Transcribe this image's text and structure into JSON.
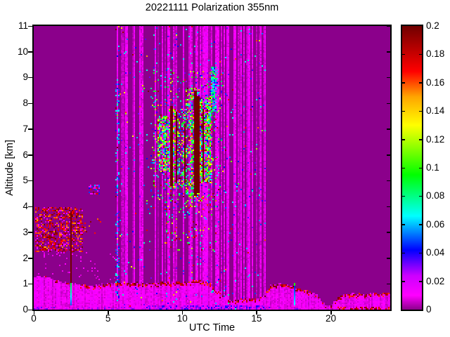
{
  "chart_data": {
    "type": "heatmap",
    "title": "20221111 Polarization 355nm",
    "xlabel": "UTC Time",
    "ylabel": "Altitude [km]",
    "x_range": [
      0,
      24
    ],
    "x_ticks": [
      0,
      5,
      10,
      15,
      20
    ],
    "y_range": [
      0,
      11
    ],
    "y_ticks": [
      0,
      1,
      2,
      3,
      4,
      5,
      6,
      7,
      8,
      9,
      10,
      11
    ],
    "colorbar": {
      "range": [
        0,
        0.2
      ],
      "ticks": [
        0,
        0.02,
        0.04,
        0.06,
        0.08,
        0.1,
        0.12,
        0.14,
        0.16,
        0.18,
        0.2
      ],
      "labels": [
        "0",
        "0.02",
        "0.04",
        "0.06",
        "0.08",
        "0.1",
        "0.12",
        "0.14",
        "0.16",
        "0.18",
        "0.2"
      ]
    },
    "background_value": 0,
    "background_color": "#8B008B",
    "colormap_stops": [
      [
        0.0,
        "#8B008B"
      ],
      [
        0.01,
        "#FF00FF"
      ],
      [
        0.024,
        "#CC00FF"
      ],
      [
        0.042,
        "#0000FF"
      ],
      [
        0.066,
        "#00FFFF"
      ],
      [
        0.095,
        "#00FF00"
      ],
      [
        0.13,
        "#FFFF00"
      ],
      [
        0.15,
        "#FFA500"
      ],
      [
        0.168,
        "#FF0000"
      ],
      [
        0.2,
        "#700000"
      ]
    ],
    "features": [
      {
        "name": "noise-stripe-band",
        "type": "stripes",
        "t": [
          5.5,
          15.62
        ],
        "h": [
          0,
          11
        ],
        "amp": 0.013,
        "col_density": 0.6
      },
      {
        "name": "noise-speckles-blue",
        "type": "speckle",
        "t": [
          5.5,
          15.62
        ],
        "h": [
          0,
          11
        ],
        "density": 0.018,
        "value": [
          0.03,
          0.075
        ]
      },
      {
        "name": "noise-speckles-hot",
        "type": "speckle",
        "t": [
          5.5,
          15.62
        ],
        "h": [
          0,
          11
        ],
        "density": 0.004,
        "value": [
          0.1,
          0.2
        ]
      },
      {
        "name": "stripe-zone-left-edge-blue",
        "type": "speckle",
        "t": [
          5.5,
          5.8
        ],
        "h": [
          0.3,
          9
        ],
        "density": 0.22,
        "value": [
          0.035,
          0.07
        ]
      },
      {
        "name": "boundary-layer",
        "type": "layer",
        "wobble": 0.1,
        "value": [
          0.006,
          0.013
        ],
        "points": [
          [
            0,
            1.3
          ],
          [
            0.8,
            1.27
          ],
          [
            1.5,
            1.15
          ],
          [
            2.2,
            1.05
          ],
          [
            3,
            0.97
          ],
          [
            4,
            0.93
          ],
          [
            5,
            1.0
          ],
          [
            6,
            1.05
          ],
          [
            7,
            1.02
          ],
          [
            8,
            1.0
          ],
          [
            9,
            1.05
          ],
          [
            10,
            1.05
          ],
          [
            11,
            1.12
          ],
          [
            11.6,
            1.05
          ],
          [
            12.2,
            0.8
          ],
          [
            12.8,
            0.55
          ],
          [
            13.4,
            0.35
          ],
          [
            14.2,
            0.42
          ],
          [
            15.1,
            0.4
          ],
          [
            15.6,
            0.65
          ],
          [
            16,
            0.95
          ],
          [
            16.6,
            1.0
          ],
          [
            17.1,
            1.0
          ],
          [
            17.5,
            0.92
          ],
          [
            17.9,
            0.78
          ],
          [
            18.3,
            0.74
          ],
          [
            18.8,
            0.66
          ],
          [
            19.2,
            0.5
          ],
          [
            19.6,
            0.18
          ],
          [
            20.1,
            0.22
          ],
          [
            20.5,
            0.52
          ],
          [
            21,
            0.58
          ],
          [
            22,
            0.6
          ],
          [
            23,
            0.6
          ],
          [
            24,
            0.65
          ]
        ],
        "edge": {
          "thickness": 0.12,
          "value": [
            0.16,
            0.2
          ],
          "segments": [
            [
              0,
              3,
              0.1
            ],
            [
              3,
              5.5,
              0.35
            ],
            [
              5.5,
              11.8,
              0.55
            ],
            [
              11.8,
              15.6,
              0.4
            ],
            [
              15.6,
              19.2,
              0.55
            ],
            [
              19.2,
              20.3,
              0.2
            ],
            [
              20.3,
              24,
              0.55
            ]
          ]
        }
      },
      {
        "name": "left-aerosol-maroon-speckle",
        "type": "speckle",
        "t": [
          0.1,
          3.3
        ],
        "h": [
          2.25,
          4.0
        ],
        "density": 0.38,
        "value": [
          0.15,
          0.2
        ]
      },
      {
        "name": "left-aerosol-bright-speckle",
        "type": "speckle",
        "t": [
          0.1,
          3.3
        ],
        "h": [
          2.25,
          4.0
        ],
        "density": 0.15,
        "value": [
          0.006,
          0.014
        ]
      },
      {
        "name": "left-aerosol-tail",
        "type": "speckle",
        "t": [
          3.3,
          4.5
        ],
        "h": [
          2.95,
          3.6
        ],
        "density": 0.1,
        "value": [
          0.15,
          0.2
        ]
      },
      {
        "name": "left-faint-speckle",
        "type": "speckle",
        "t": [
          0,
          5.5
        ],
        "h": [
          1.15,
          2.4
        ],
        "density": 0.05,
        "value": [
          0.005,
          0.011
        ]
      },
      {
        "name": "mini-cluster",
        "type": "cloud",
        "t": [
          3.65,
          4.45
        ],
        "h": [
          4.45,
          4.85
        ],
        "density": 0.5,
        "palette": [
          [
            0.35,
            0.16,
            0.2
          ],
          [
            0.3,
            0.035,
            0.06
          ],
          [
            0.35,
            0.006,
            0.016
          ]
        ]
      },
      {
        "name": "cloud-halo",
        "type": "cloud",
        "t": [
          7.9,
          12.7
        ],
        "h": [
          3.9,
          9.3
        ],
        "density": 0.1,
        "palette": [
          [
            0.3,
            0.05,
            0.09
          ],
          [
            0.25,
            0.09,
            0.13
          ],
          [
            0.2,
            0.15,
            0.2
          ],
          [
            0.25,
            0.025,
            0.05
          ]
        ]
      },
      {
        "name": "below-cloud-speckle",
        "type": "cloud",
        "t": [
          8.8,
          12.5
        ],
        "h": [
          2.3,
          4.4
        ],
        "density": 0.05,
        "palette": [
          [
            0.45,
            0.16,
            0.2
          ],
          [
            0.3,
            0.05,
            0.09
          ],
          [
            0.25,
            0.09,
            0.13
          ]
        ]
      },
      {
        "name": "cloud-cluster-a",
        "type": "cloud",
        "t": [
          8.3,
          9.05
        ],
        "h": [
          5.35,
          7.5
        ],
        "density": 0.7,
        "palette": [
          [
            0.28,
            0.088,
            0.125
          ],
          [
            0.24,
            0.055,
            0.088
          ],
          [
            0.14,
            0.125,
            0.15
          ],
          [
            0.12,
            0.15,
            0.2
          ],
          [
            0.12,
            0.02,
            0.05
          ],
          [
            0.1,
            0.006,
            0.016
          ]
        ]
      },
      {
        "name": "cloud-cluster-b",
        "type": "cloud",
        "t": [
          9.05,
          10.25
        ],
        "h": [
          4.7,
          7.8
        ],
        "density": 0.4,
        "palette": [
          [
            0.28,
            0.088,
            0.125
          ],
          [
            0.24,
            0.055,
            0.088
          ],
          [
            0.14,
            0.125,
            0.15
          ],
          [
            0.12,
            0.15,
            0.2
          ],
          [
            0.12,
            0.02,
            0.05
          ],
          [
            0.1,
            0.006,
            0.016
          ]
        ]
      },
      {
        "name": "cloud-cluster-c",
        "type": "cloud",
        "t": [
          10.25,
          11.2
        ],
        "h": [
          4.3,
          8.6
        ],
        "density": 0.6,
        "palette": [
          [
            0.28,
            0.088,
            0.125
          ],
          [
            0.24,
            0.055,
            0.088
          ],
          [
            0.14,
            0.125,
            0.15
          ],
          [
            0.12,
            0.15,
            0.2
          ],
          [
            0.12,
            0.02,
            0.05
          ],
          [
            0.1,
            0.006,
            0.016
          ]
        ]
      },
      {
        "name": "cloud-cluster-d",
        "type": "cloud",
        "t": [
          11.2,
          12.05
        ],
        "h": [
          4.9,
          8.2
        ],
        "density": 0.7,
        "palette": [
          [
            0.28,
            0.088,
            0.125
          ],
          [
            0.24,
            0.055,
            0.088
          ],
          [
            0.14,
            0.125,
            0.15
          ],
          [
            0.12,
            0.15,
            0.2
          ],
          [
            0.12,
            0.02,
            0.05
          ],
          [
            0.1,
            0.006,
            0.016
          ]
        ]
      },
      {
        "name": "cyan-blob-high",
        "type": "cloud",
        "t": [
          11.95,
          12.4
        ],
        "h": [
          7.7,
          9.4
        ],
        "density": 0.75,
        "palette": [
          [
            0.5,
            0.055,
            0.09
          ],
          [
            0.3,
            0.035,
            0.06
          ],
          [
            0.2,
            0.006,
            0.016
          ]
        ]
      },
      {
        "name": "maroon-bar-1",
        "type": "solid",
        "t": [
          9.22,
          9.38
        ],
        "h": [
          4.8,
          7.9
        ],
        "value": 0.2
      },
      {
        "name": "maroon-bar-2",
        "type": "solid",
        "t": [
          9.52,
          9.68
        ],
        "h": [
          4.9,
          7.7
        ],
        "value": 0.2
      },
      {
        "name": "maroon-bar-3",
        "type": "solid",
        "t": [
          10.12,
          10.22
        ],
        "h": [
          4.9,
          7.2
        ],
        "value": 0.2
      },
      {
        "name": "maroon-bar-4",
        "type": "solid",
        "t": [
          10.78,
          10.97
        ],
        "h": [
          4.4,
          8.5
        ],
        "value": 0.2
      },
      {
        "name": "maroon-bar-5",
        "type": "solid",
        "t": [
          11.02,
          11.18
        ],
        "h": [
          4.5,
          8.3
        ],
        "value": 0.2
      },
      {
        "name": "maroon-bar-6",
        "type": "solid",
        "t": [
          11.36,
          11.46
        ],
        "h": [
          5.0,
          7.8
        ],
        "value": 0.2
      },
      {
        "name": "morning-maroon-column",
        "type": "solid",
        "t": [
          2.42,
          2.58
        ],
        "h": [
          0.35,
          3.8
        ],
        "value": 0.2
      },
      {
        "name": "morning-cyan-core",
        "type": "vgrad",
        "t": [
          2.45,
          2.56
        ],
        "h": [
          0.15,
          1.02
        ],
        "value": [
          0.05,
          0.09
        ]
      },
      {
        "name": "evening-green-top",
        "type": "solid",
        "t": [
          17.48,
          17.62
        ],
        "h": [
          0.9,
          1.02
        ],
        "value": 0.1
      },
      {
        "name": "evening-blue-core",
        "type": "vgrad",
        "t": [
          17.48,
          17.62
        ],
        "h": [
          0.15,
          0.9
        ],
        "value": [
          0.068,
          0.044
        ]
      },
      {
        "name": "bottom-strip-mid",
        "type": "speckle",
        "t": [
          7.4,
          15.62
        ],
        "h": [
          0,
          0.14
        ],
        "density": 0.55,
        "value": [
          0.02,
          0.042
        ]
      },
      {
        "name": "bottom-strip-left",
        "type": "speckle",
        "t": [
          0,
          7.4
        ],
        "h": [
          0,
          0.12
        ],
        "density": 0.2,
        "value": [
          0.02,
          0.035
        ]
      },
      {
        "name": "bottom-strip-right",
        "type": "speckle",
        "t": [
          15.62,
          18.5
        ],
        "h": [
          0,
          0.1
        ],
        "density": 0.12,
        "value": [
          0.02,
          0.035
        ]
      },
      {
        "name": "bottom-maroon-right",
        "type": "speckle",
        "t": [
          20.3,
          24
        ],
        "h": [
          0,
          0.1
        ],
        "density": 0.3,
        "value": [
          0.16,
          0.2
        ]
      }
    ]
  }
}
